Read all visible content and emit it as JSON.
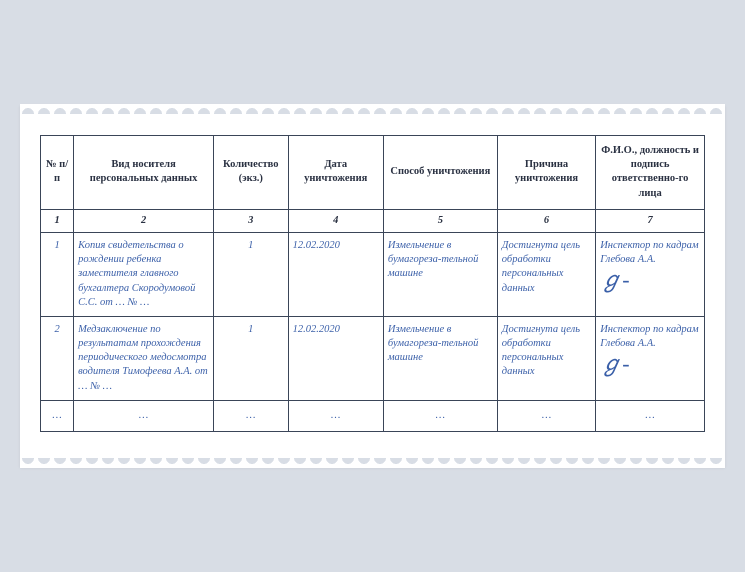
{
  "headers": {
    "num": "№ п/п",
    "carrier": "Вид носителя персональных данных",
    "qty": "Количество (экз.)",
    "date": "Дата уничтожения",
    "method": "Способ уничтожения",
    "reason": "Причина уничтожения",
    "sign": "Ф.И.О., должность и подпись ответственно-го лица"
  },
  "colnums": [
    "1",
    "2",
    "3",
    "4",
    "5",
    "6",
    "7"
  ],
  "rows": [
    {
      "num": "1",
      "carrier": "Копия свидетельства о рождении ребенка заместителя главного бухгалтера Скородумовой С.С. от … № …",
      "qty": "1",
      "date": "12.02.2020",
      "method": "Измельчение в бумагореза-тельной машине",
      "reason": "Достигнута цель обработки персональных данных",
      "sign_text": "Инспектор по кадрам Глебова А.А.",
      "sign_mark": "ℊ-"
    },
    {
      "num": "2",
      "carrier": "Медзаключение по результатам прохождения периодического медосмотра водителя Тимофеева А.А. от … № …",
      "qty": "1",
      "date": "12.02.2020",
      "method": "Измельчение в бумагореза-тельной машине",
      "reason": "Достигнута цель обработки персональных данных",
      "sign_text": "Инспектор по кадрам Глебова А.А.",
      "sign_mark": "ℊ-"
    }
  ],
  "ellipsis": "…",
  "colors": {
    "page_bg": "#d8dde5",
    "paper_bg": "#ffffff",
    "border": "#3a4558",
    "header_text": "#2a3142",
    "data_text": "#3a5fa8"
  }
}
